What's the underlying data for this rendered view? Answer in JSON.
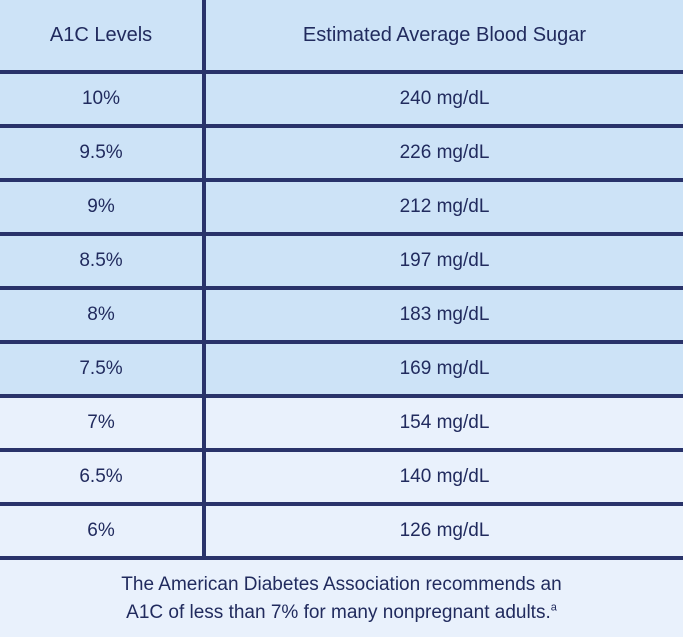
{
  "colors": {
    "row_dark_bg": "#cde3f7",
    "row_light_bg": "#e9f1fc",
    "line_navy": "#29336a",
    "text_navy": "#212b5e"
  },
  "table": {
    "headers": {
      "a1c": "A1C Levels",
      "sugar": "Estimated Average Blood Sugar"
    },
    "rows": [
      {
        "a1c": "10%",
        "sugar": "240 mg/dL"
      },
      {
        "a1c": "9.5%",
        "sugar": "226 mg/dL"
      },
      {
        "a1c": "9%",
        "sugar": "212 mg/dL"
      },
      {
        "a1c": "8.5%",
        "sugar": "197 mg/dL"
      },
      {
        "a1c": "8%",
        "sugar": "183 mg/dL"
      },
      {
        "a1c": "7.5%",
        "sugar": "169 mg/dL"
      },
      {
        "a1c": "7%",
        "sugar": "154 mg/dL"
      },
      {
        "a1c": "6.5%",
        "sugar": "140 mg/dL"
      },
      {
        "a1c": "6%",
        "sugar": "126 mg/dL"
      }
    ]
  },
  "footnote": {
    "line1": "The American Diabetes Association recommends an",
    "line2": "A1C of less than 7% for many nonpregnant adults.",
    "superscript": "a"
  },
  "chart_data": {
    "type": "table",
    "title": "",
    "columns": [
      "A1C Levels",
      "Estimated Average Blood Sugar"
    ],
    "rows": [
      [
        "10%",
        "240 mg/dL"
      ],
      [
        "9.5%",
        "226 mg/dL"
      ],
      [
        "9%",
        "212 mg/dL"
      ],
      [
        "8.5%",
        "197 mg/dL"
      ],
      [
        "8%",
        "183 mg/dL"
      ],
      [
        "7.5%",
        "169 mg/dL"
      ],
      [
        "7%",
        "154 mg/dL"
      ],
      [
        "6.5%",
        "140 mg/dL"
      ],
      [
        "6%",
        "126 mg/dL"
      ]
    ],
    "a1c_percent": [
      10,
      9.5,
      9,
      8.5,
      8,
      7.5,
      7,
      6.5,
      6
    ],
    "avg_blood_sugar_mg_dl": [
      240,
      226,
      212,
      197,
      183,
      169,
      154,
      140,
      126
    ],
    "footnote": "The American Diabetes Association recommends an A1C of less than 7% for many nonpregnant adults.a"
  }
}
